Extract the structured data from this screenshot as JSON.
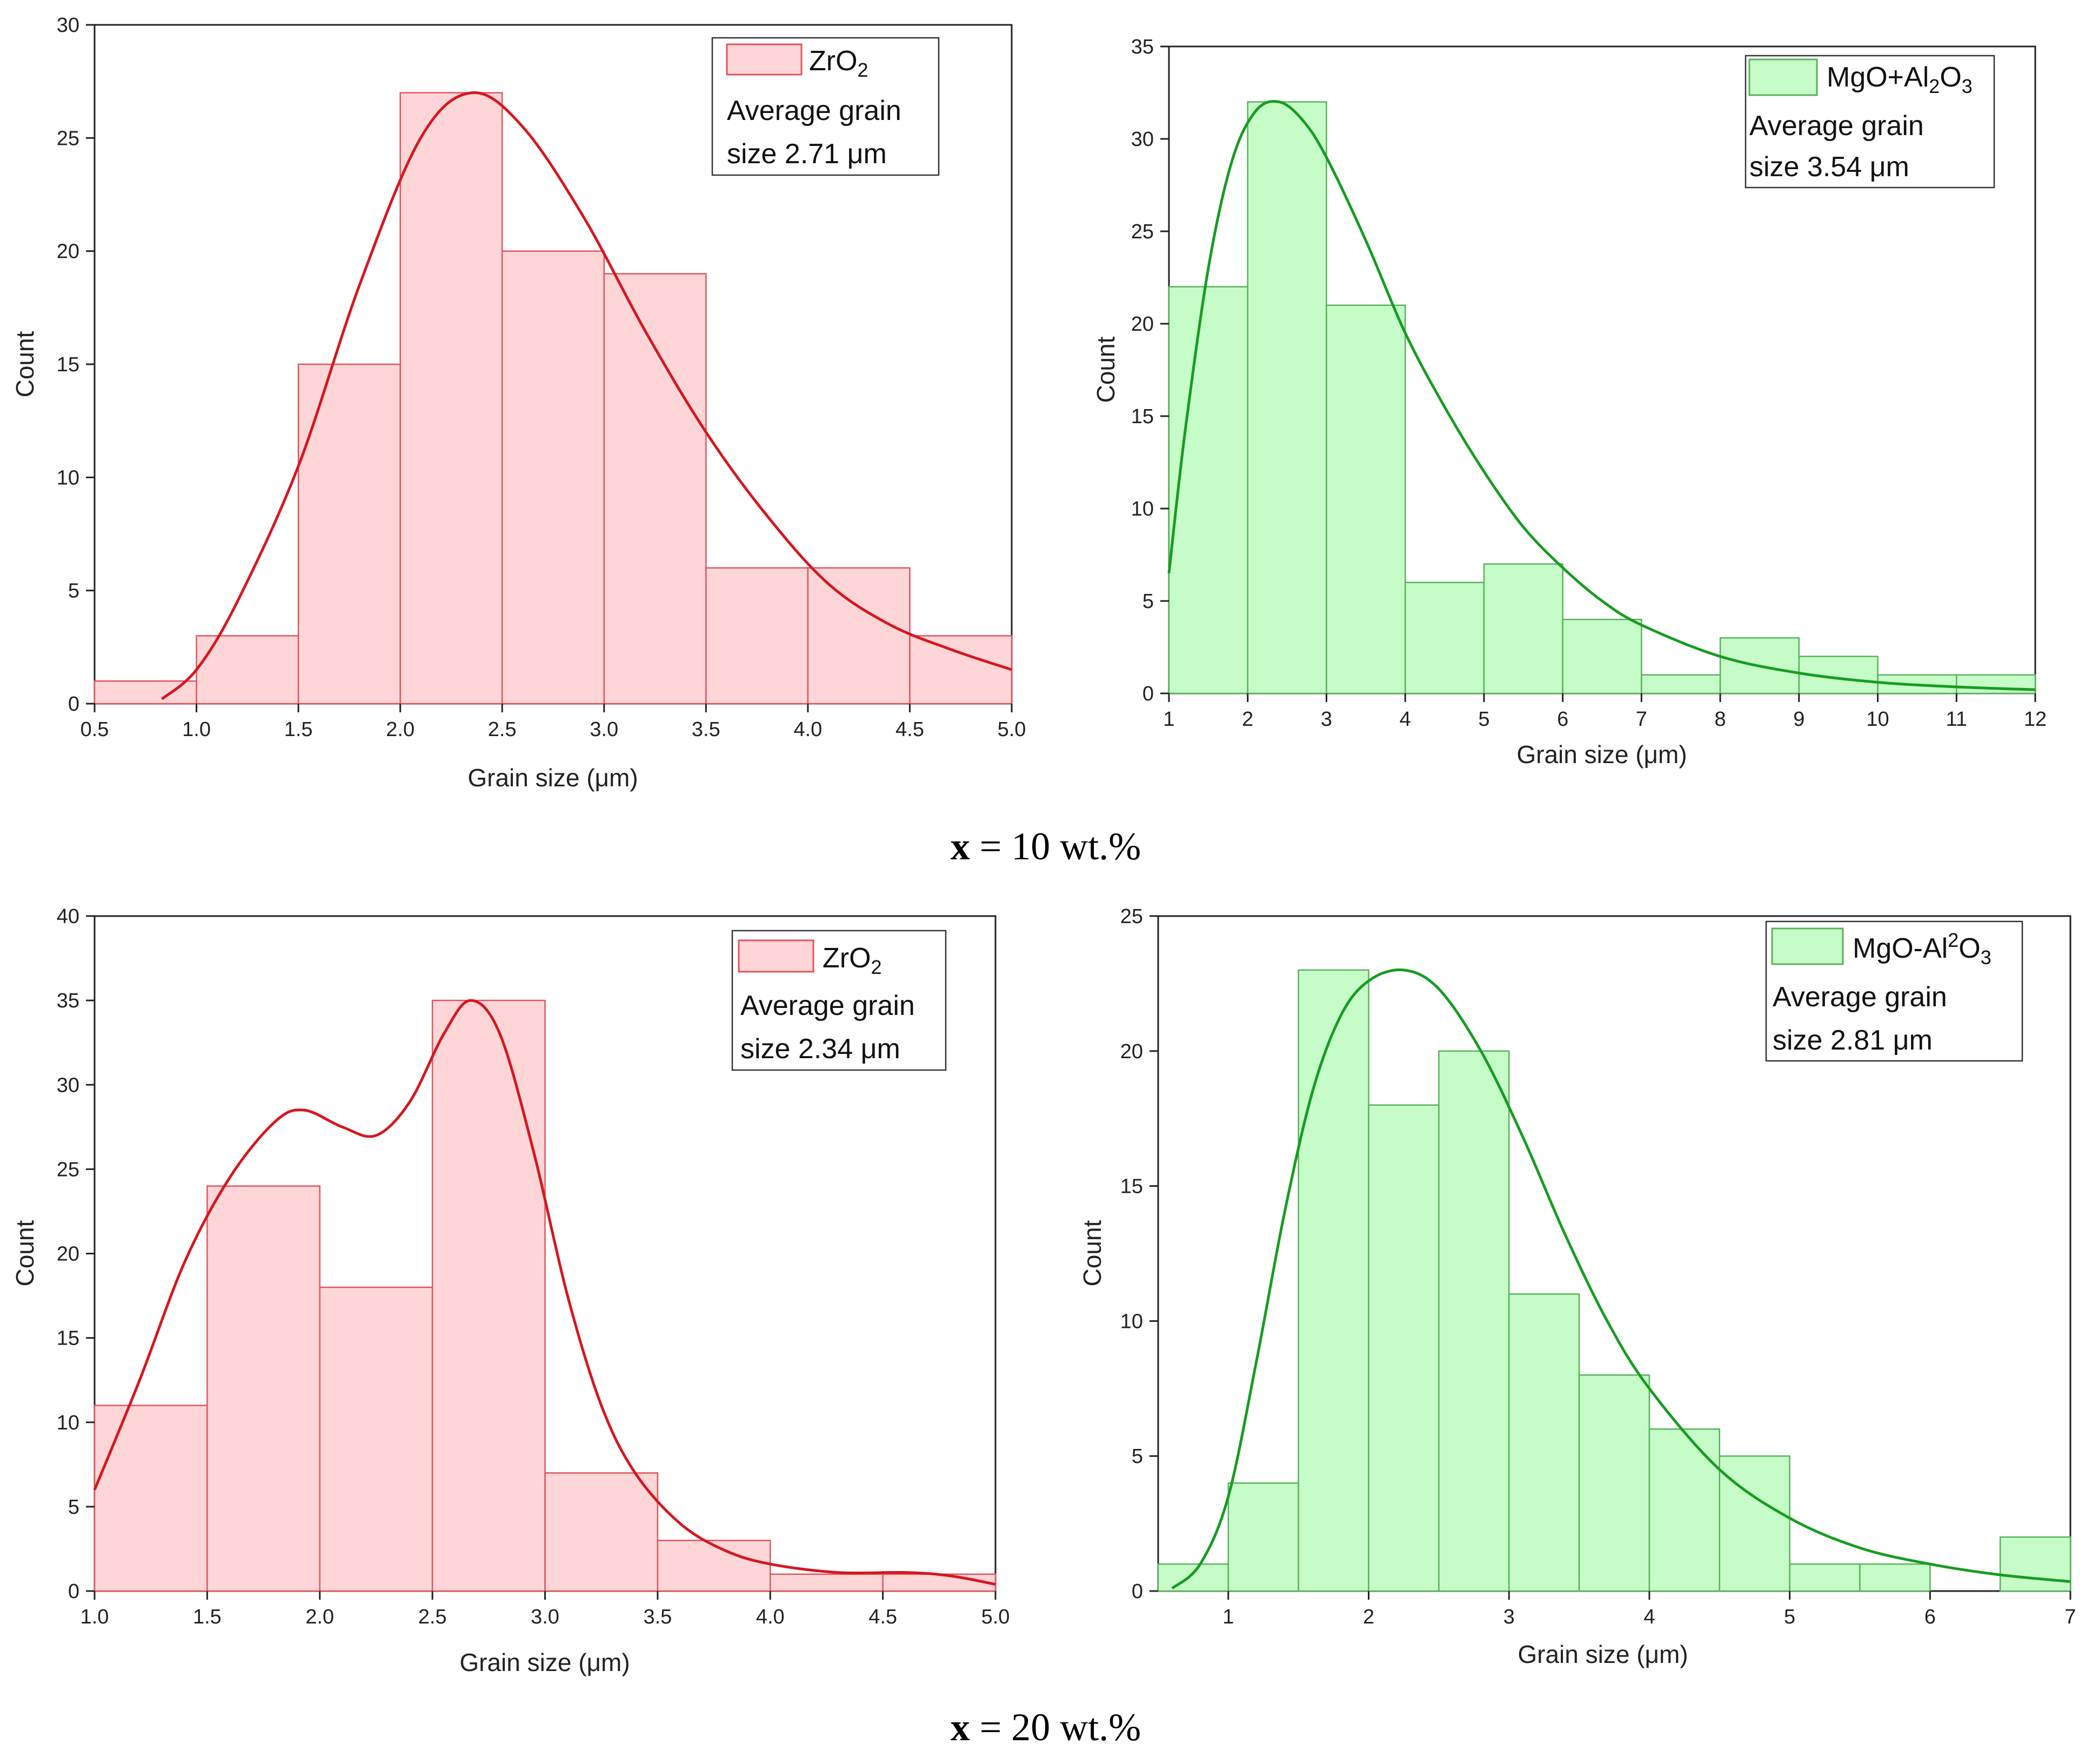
{
  "figure": {
    "captions": [
      {
        "var": "x",
        "rest": " = 10 wt.%"
      },
      {
        "var": "x",
        "rest": " = 20 wt.%"
      }
    ]
  },
  "colors": {
    "red_fill": "#ffd6d8",
    "red_edge": "#e0555d",
    "red_curve": "#d6161f",
    "green_fill": "#c6fcc8",
    "green_edge": "#58b25c",
    "green_curve": "#179c21"
  },
  "chart_data": [
    {
      "id": "tl",
      "type": "bar",
      "theme": "red",
      "xlabel": "Grain size (μm)",
      "ylabel": "Count",
      "xlim": [
        0.5,
        5.0
      ],
      "ylim": [
        0,
        30
      ],
      "xticks": [
        0.5,
        1.0,
        1.5,
        2.0,
        2.5,
        3.0,
        3.5,
        4.0,
        4.5,
        5.0
      ],
      "xtick_labels": [
        "0.5",
        "1.0",
        "1.5",
        "2.0",
        "2.5",
        "3.0",
        "3.5",
        "4.0",
        "4.5",
        "5.0"
      ],
      "yticks": [
        0,
        5,
        10,
        15,
        20,
        25,
        30
      ],
      "ytick_labels": [
        "0",
        "5",
        "10",
        "15",
        "20",
        "25",
        "30"
      ],
      "bins": [
        [
          0.5,
          1.0,
          1
        ],
        [
          1.0,
          1.5,
          3
        ],
        [
          1.5,
          2.0,
          15
        ],
        [
          2.0,
          2.5,
          27
        ],
        [
          2.5,
          3.0,
          20
        ],
        [
          3.0,
          3.5,
          19
        ],
        [
          3.5,
          4.0,
          6
        ],
        [
          4.0,
          4.5,
          6
        ],
        [
          4.5,
          5.0,
          3
        ]
      ],
      "curve": [
        [
          0.83,
          0.2
        ],
        [
          1.0,
          1.5
        ],
        [
          1.2,
          4.5
        ],
        [
          1.5,
          10.5
        ],
        [
          1.8,
          18.5
        ],
        [
          2.1,
          25.0
        ],
        [
          2.35,
          27.0
        ],
        [
          2.6,
          25.5
        ],
        [
          2.9,
          21.5
        ],
        [
          3.2,
          16.5
        ],
        [
          3.5,
          12.0
        ],
        [
          3.8,
          8.3
        ],
        [
          4.1,
          5.3
        ],
        [
          4.4,
          3.5
        ],
        [
          4.7,
          2.4
        ],
        [
          5.0,
          1.5
        ]
      ],
      "legend": {
        "name_main": "ZrO",
        "name_sub": "2",
        "name_tail": "",
        "name_sub2": "",
        "line1": "Average grain",
        "line2": "size 2.71 μm"
      }
    },
    {
      "id": "tr",
      "type": "bar",
      "theme": "green",
      "xlabel": "Grain size (μm)",
      "ylabel": "Count",
      "xlim": [
        1,
        12
      ],
      "ylim": [
        0,
        35
      ],
      "xticks": [
        1,
        2,
        3,
        4,
        5,
        6,
        7,
        8,
        9,
        10,
        11,
        12
      ],
      "xtick_labels": [
        "1",
        "2",
        "3",
        "4",
        "5",
        "6",
        "7",
        "8",
        "9",
        "10",
        "11",
        "12"
      ],
      "yticks": [
        0,
        5,
        10,
        15,
        20,
        25,
        30,
        35
      ],
      "ytick_labels": [
        "0",
        "5",
        "10",
        "15",
        "20",
        "25",
        "30",
        "35"
      ],
      "bins": [
        [
          1,
          2,
          22
        ],
        [
          2,
          3,
          32
        ],
        [
          3,
          4,
          21
        ],
        [
          4,
          5,
          6
        ],
        [
          5,
          6,
          7
        ],
        [
          6,
          7,
          4
        ],
        [
          7,
          8,
          1
        ],
        [
          8,
          9,
          3
        ],
        [
          9,
          10,
          2
        ],
        [
          10,
          11,
          1
        ],
        [
          11,
          12,
          1
        ]
      ],
      "curve": [
        [
          1.0,
          6.5
        ],
        [
          1.2,
          14.0
        ],
        [
          1.5,
          23.0
        ],
        [
          1.8,
          28.8
        ],
        [
          2.1,
          31.5
        ],
        [
          2.4,
          32.0
        ],
        [
          2.7,
          31.0
        ],
        [
          3.0,
          29.0
        ],
        [
          3.5,
          24.5
        ],
        [
          4.0,
          19.5
        ],
        [
          4.5,
          15.5
        ],
        [
          5.0,
          12.0
        ],
        [
          5.5,
          9.0
        ],
        [
          6.0,
          6.8
        ],
        [
          6.5,
          5.0
        ],
        [
          7.0,
          3.7
        ],
        [
          8.0,
          2.0
        ],
        [
          9.0,
          1.1
        ],
        [
          10.0,
          0.6
        ],
        [
          11.0,
          0.35
        ],
        [
          12.0,
          0.2
        ]
      ],
      "legend": {
        "name_main": "MgO+Al",
        "name_sub": "2",
        "name_tail": "O",
        "name_sub2": "3",
        "line1": "Average grain",
        "line2": "size 3.54 μm"
      }
    },
    {
      "id": "bl",
      "type": "bar",
      "theme": "red",
      "xlabel": "Grain size (μm)",
      "ylabel": "Count",
      "xlim": [
        1.0,
        5.0
      ],
      "ylim": [
        0,
        40
      ],
      "xticks": [
        1.0,
        1.5,
        2.0,
        2.5,
        3.0,
        3.5,
        4.0,
        4.5,
        5.0
      ],
      "xtick_labels": [
        "1.0",
        "1.5",
        "2.0",
        "2.5",
        "3.0",
        "3.5",
        "4.0",
        "4.5",
        "5.0"
      ],
      "yticks": [
        0,
        5,
        10,
        15,
        20,
        25,
        30,
        35,
        40
      ],
      "ytick_labels": [
        "0",
        "5",
        "10",
        "15",
        "20",
        "25",
        "30",
        "35",
        "40"
      ],
      "bins": [
        [
          1.0,
          1.5,
          11
        ],
        [
          1.5,
          2.0,
          24
        ],
        [
          2.0,
          2.5,
          18
        ],
        [
          2.5,
          3.0,
          35
        ],
        [
          3.0,
          3.5,
          7
        ],
        [
          3.5,
          4.0,
          3
        ],
        [
          4.0,
          4.5,
          1
        ],
        [
          4.5,
          5.0,
          1
        ]
      ],
      "curve": [
        [
          1.0,
          6.0
        ],
        [
          1.2,
          12.5
        ],
        [
          1.4,
          19.5
        ],
        [
          1.6,
          24.5
        ],
        [
          1.8,
          27.8
        ],
        [
          1.93,
          28.5
        ],
        [
          2.1,
          27.5
        ],
        [
          2.25,
          27.0
        ],
        [
          2.4,
          29.0
        ],
        [
          2.55,
          33.0
        ],
        [
          2.67,
          35.0
        ],
        [
          2.8,
          33.0
        ],
        [
          2.95,
          26.0
        ],
        [
          3.1,
          17.5
        ],
        [
          3.25,
          11.0
        ],
        [
          3.4,
          7.0
        ],
        [
          3.6,
          4.0
        ],
        [
          3.8,
          2.4
        ],
        [
          4.0,
          1.6
        ],
        [
          4.3,
          1.1
        ],
        [
          4.6,
          1.1
        ],
        [
          4.8,
          0.9
        ],
        [
          5.0,
          0.4
        ]
      ],
      "legend": {
        "name_main": "ZrO",
        "name_sub": "2",
        "name_tail": "",
        "name_sub2": "",
        "line1": "Average grain",
        "line2": "size 2.34 μm"
      }
    },
    {
      "id": "br",
      "type": "bar",
      "theme": "green",
      "xlabel": "Grain size (μm)",
      "ylabel": "Count",
      "xlim": [
        0.5,
        7.0
      ],
      "ylim": [
        0,
        25
      ],
      "xticks": [
        1,
        2,
        3,
        4,
        5,
        6,
        7
      ],
      "xtick_labels": [
        "1",
        "2",
        "3",
        "4",
        "5",
        "6",
        "7"
      ],
      "yticks": [
        0,
        5,
        10,
        15,
        20,
        25
      ],
      "ytick_labels": [
        "0",
        "5",
        "10",
        "15",
        "20",
        "25"
      ],
      "bins": [
        [
          0.5,
          1.0,
          1
        ],
        [
          1.0,
          1.5,
          4
        ],
        [
          1.5,
          2.0,
          23
        ],
        [
          2.0,
          2.5,
          18
        ],
        [
          2.5,
          3.0,
          20
        ],
        [
          3.0,
          3.5,
          11
        ],
        [
          3.5,
          4.0,
          8
        ],
        [
          4.0,
          4.5,
          6
        ],
        [
          4.5,
          5.0,
          5
        ],
        [
          5.0,
          5.5,
          1
        ],
        [
          5.5,
          6.0,
          1
        ],
        [
          6.5,
          7.0,
          2
        ]
      ],
      "curve": [
        [
          0.6,
          0.1
        ],
        [
          0.8,
          1.0
        ],
        [
          1.0,
          3.5
        ],
        [
          1.2,
          8.5
        ],
        [
          1.4,
          14.0
        ],
        [
          1.6,
          18.5
        ],
        [
          1.8,
          21.3
        ],
        [
          2.0,
          22.6
        ],
        [
          2.25,
          23.0
        ],
        [
          2.5,
          22.3
        ],
        [
          2.8,
          20.0
        ],
        [
          3.1,
          16.8
        ],
        [
          3.4,
          13.2
        ],
        [
          3.7,
          10.0
        ],
        [
          4.0,
          7.5
        ],
        [
          4.5,
          4.5
        ],
        [
          5.0,
          2.7
        ],
        [
          5.5,
          1.6
        ],
        [
          6.0,
          1.0
        ],
        [
          6.5,
          0.6
        ],
        [
          7.0,
          0.35
        ]
      ],
      "legend": {
        "name_main": "MgO-Al",
        "name_sup": "2",
        "name_tail": "O",
        "name_sub2": "3",
        "line1": "Average grain",
        "line2": "size 2.81 μm"
      }
    }
  ]
}
